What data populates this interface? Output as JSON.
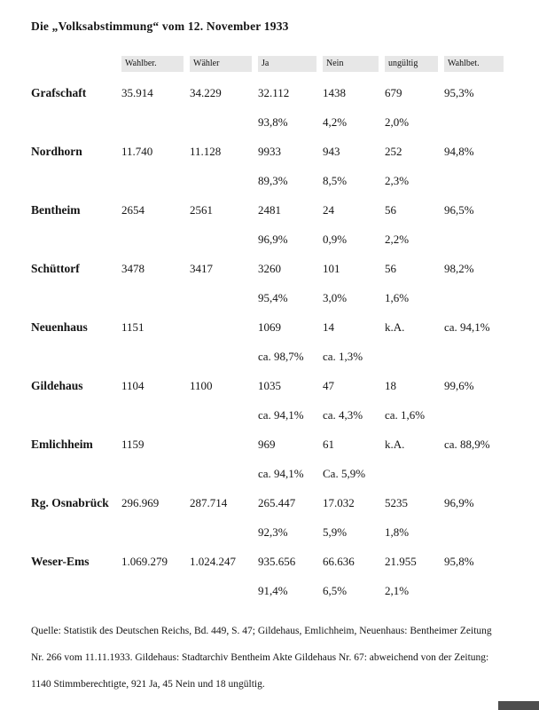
{
  "title": "Die „Volksabstimmung“ vom 12. November 1933",
  "colors": {
    "header_bg": "#e7e7e7",
    "corner": "#4d4d4d"
  },
  "table": {
    "headers": [
      "Wahlber.",
      "Wähler",
      "Ja",
      "Nein",
      "ungültig",
      "Wahlbet."
    ],
    "rows": [
      {
        "name": "Grafschaft",
        "line1": [
          "35.914",
          "34.229",
          "32.112",
          "1438",
          "679",
          "95,3%"
        ],
        "line2": [
          "93,8%",
          "4,2%",
          "2,0%"
        ]
      },
      {
        "name": "Nordhorn",
        "line1": [
          "11.740",
          "11.128",
          "9933",
          "943",
          "252",
          "94,8%"
        ],
        "line2": [
          "89,3%",
          "8,5%",
          "2,3%"
        ]
      },
      {
        "name": "Bentheim",
        "line1": [
          "2654",
          "2561",
          "2481",
          "24",
          "56",
          "96,5%"
        ],
        "line2": [
          "96,9%",
          "0,9%",
          "2,2%"
        ]
      },
      {
        "name": "Schüttorf",
        "line1": [
          "3478",
          "3417",
          "3260",
          "101",
          "56",
          "98,2%"
        ],
        "line2": [
          "95,4%",
          "3,0%",
          "1,6%"
        ]
      },
      {
        "name": "Neuenhaus",
        "line1": [
          "1151",
          "",
          "1069",
          "14",
          "k.A.",
          "ca. 94,1%"
        ],
        "line2": [
          "ca. 98,7%",
          "ca. 1,3%",
          ""
        ]
      },
      {
        "name": "Gildehaus",
        "line1": [
          "1104",
          "1100",
          "1035",
          "47",
          "18",
          "99,6%"
        ],
        "line2": [
          "ca. 94,1%",
          "ca. 4,3%",
          "ca. 1,6%"
        ]
      },
      {
        "name": "Emlichheim",
        "line1": [
          "1159",
          "",
          "969",
          "61",
          "k.A.",
          "ca. 88,9%"
        ],
        "line2": [
          "ca. 94,1%",
          "Ca. 5,9%",
          ""
        ]
      },
      {
        "name": "Rg. Osnabrück",
        "line1": [
          "296.969",
          "287.714",
          "265.447",
          "17.032",
          "5235",
          "96,9%"
        ],
        "line2": [
          "92,3%",
          "5,9%",
          "1,8%"
        ]
      },
      {
        "name": "Weser-Ems",
        "line1": [
          "1.069.279",
          "1.024.247",
          "935.656",
          "66.636",
          "21.955",
          "95,8%"
        ],
        "line2": [
          "91,4%",
          "6,5%",
          "2,1%"
        ]
      }
    ]
  },
  "footer": {
    "lines": [
      "Quelle: Statistik des Deutschen Reichs, Bd. 449, S. 47; Gildehaus, Emlichheim, Neuenhaus: Bentheimer Zeitung",
      "Nr. 266 vom 11.11.1933. Gildehaus: Stadtarchiv Bentheim Akte Gildehaus Nr. 67: abweichend von der Zeitung:",
      "1140 Stimmberechtigte, 921 Ja, 45 Nein und 18 ungültig."
    ]
  }
}
